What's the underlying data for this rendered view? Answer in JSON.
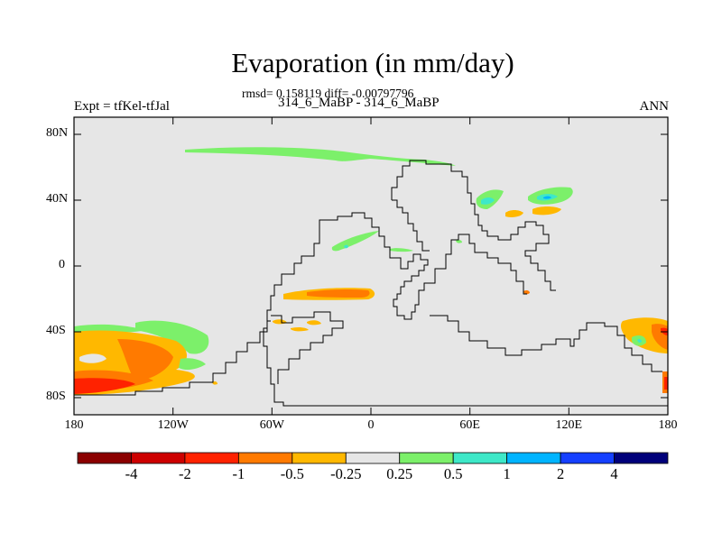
{
  "title": "Evaporation (in mm/day)",
  "stats_line": "rmsd= 0.158119 diff= -0.00797796",
  "cases_line": "314_6_MaBP - 314_6_MaBP",
  "left_label": "Expt = tfKel-tfJal",
  "right_label": "ANN",
  "lat_ticks": [
    "80N",
    "40N",
    "0",
    "40S",
    "80S"
  ],
  "lon_ticks": [
    "180",
    "120W",
    "60W",
    "0",
    "60E",
    "120E",
    "180"
  ],
  "colorbar": {
    "labels": [
      "-4",
      "-2",
      "-1",
      "-0.5",
      "-0.25",
      "0.25",
      "0.5",
      "1",
      "2",
      "4"
    ],
    "colors": [
      "#8b0000",
      "#cd0000",
      "#ff2200",
      "#ff7a00",
      "#ffb800",
      "#e6e6e6",
      "#7cf06a",
      "#3ee8c8",
      "#00b4ff",
      "#1540ff",
      "#00007a"
    ]
  },
  "colors": {
    "background_field": "#e6e6e6",
    "coastline": "#000000"
  }
}
